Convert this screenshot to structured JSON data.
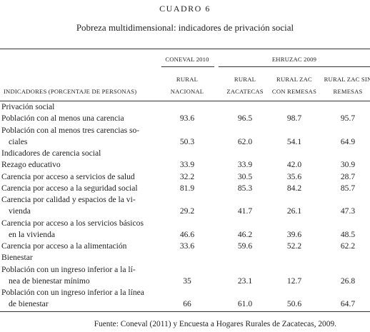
{
  "header": {
    "label": "CUADRO 6",
    "title": "Pobreza multidimensional: indicadores de privación social"
  },
  "table": {
    "groups": [
      "CONEVAL 2010",
      "EHRUZAC 2009"
    ],
    "stub_header": "INDICADORES (PORCENTAJE DE PERSONAS)",
    "columns": [
      [
        "RURAL",
        "NACIONAL"
      ],
      [
        "RURAL",
        "ZACATECAS"
      ],
      [
        "RURAL ZAC",
        "CON REMESAS"
      ],
      [
        "RURAL ZAC SIN",
        "REMESAS"
      ]
    ],
    "rows": [
      {
        "label": [
          "Privación social"
        ]
      },
      {
        "label": [
          "Población con al menos una carencia"
        ],
        "values": [
          "93.6",
          "96.5",
          "98.7",
          "95.7"
        ]
      },
      {
        "label": [
          "Población con al menos tres carencias so-",
          "ciales"
        ],
        "values": [
          "50.3",
          "62.0",
          "54.1",
          "64.9"
        ]
      },
      {
        "label": [
          "Indicadores de carencia social"
        ]
      },
      {
        "label": [
          "Rezago educativo"
        ],
        "values": [
          "33.9",
          "33.9",
          "42.0",
          "30.9"
        ]
      },
      {
        "label": [
          "Carencia por acceso a servicios de salud"
        ],
        "values": [
          "32.2",
          "30.5",
          "35.6",
          "28.7"
        ]
      },
      {
        "label": [
          "Carencia por acceso a la seguridad social"
        ],
        "values": [
          "81.9",
          "85.3",
          "84.2",
          "85.7"
        ]
      },
      {
        "label": [
          "Carencia por calidad y espacios de la vi-",
          "vienda"
        ],
        "values": [
          "29.2",
          "41.7",
          "26.1",
          "47.3"
        ]
      },
      {
        "label": [
          "Carencia por acceso a los servicios básicos",
          "en la vivienda"
        ],
        "values": [
          "46.6",
          "46.2",
          "39.6",
          "48.5"
        ]
      },
      {
        "label": [
          "Carencia por acceso a la alimentación"
        ],
        "values": [
          "33.6",
          "59.6",
          "52.2",
          "62.2"
        ]
      },
      {
        "label": [
          "Bienestar"
        ]
      },
      {
        "label": [
          "Población con un ingreso inferior a la lí-",
          "nea de bienestar mínimo"
        ],
        "values": [
          "35",
          "23.1",
          "12.7",
          "26.8"
        ]
      },
      {
        "label": [
          "Población con un ingreso inferior a la línea",
          "de bienestar"
        ],
        "values": [
          "66",
          "61.0",
          "50.6",
          "64.7"
        ]
      }
    ]
  },
  "footer": {
    "source": "Fuente: Coneval (2011) y Encuesta a Hogares Rurales de Zacatecas, 2009."
  }
}
